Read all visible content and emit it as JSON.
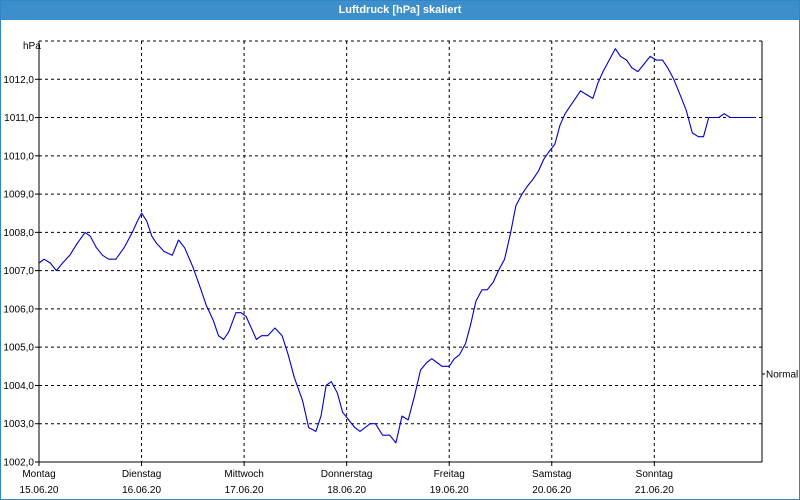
{
  "window": {
    "title": "Luftdruck [hPa] skaliert"
  },
  "chart_data": {
    "type": "line",
    "title": "Luftdruck [hPa] skaliert",
    "ylabel": "hPa",
    "ylim": [
      1002.0,
      1013.0
    ],
    "yticks": [
      "1002,0",
      "1003,0",
      "1004,0",
      "1005,0",
      "1006,0",
      "1007,0",
      "1008,0",
      "1009,0",
      "1010,0",
      "1011,0",
      "1012,0"
    ],
    "ytick_values": [
      1002,
      1003,
      1004,
      1005,
      1006,
      1007,
      1008,
      1009,
      1010,
      1011,
      1012
    ],
    "xlim": [
      0,
      7.05
    ],
    "days": [
      {
        "day": "Montag",
        "date": "15.06.20"
      },
      {
        "day": "Dienstag",
        "date": "16.06.20"
      },
      {
        "day": "Mittwoch",
        "date": "17.06.20"
      },
      {
        "day": "Donnerstag",
        "date": "18.06.20"
      },
      {
        "day": "Freitag",
        "date": "19.06.20"
      },
      {
        "day": "Samstag",
        "date": "20.06.20"
      },
      {
        "day": "Sonntag",
        "date": "21.06.20"
      }
    ],
    "right_label": "Normal",
    "right_label_value": 1004.3,
    "grid": true,
    "series": [
      {
        "color": "#0000cc",
        "x": [
          0.0,
          0.05,
          0.11,
          0.17,
          0.23,
          0.3,
          0.37,
          0.45,
          0.5,
          0.56,
          0.62,
          0.68,
          0.75,
          0.83,
          0.91,
          0.96,
          1.0,
          1.05,
          1.1,
          1.15,
          1.22,
          1.3,
          1.36,
          1.42,
          1.5,
          1.58,
          1.63,
          1.7,
          1.75,
          1.8,
          1.85,
          1.92,
          1.97,
          2.02,
          2.07,
          2.12,
          2.17,
          2.23,
          2.3,
          2.37,
          2.43,
          2.49,
          2.57,
          2.63,
          2.7,
          2.75,
          2.8,
          2.85,
          2.91,
          2.96,
          3.02,
          3.08,
          3.13,
          3.18,
          3.23,
          3.28,
          3.35,
          3.42,
          3.48,
          3.54,
          3.6,
          3.66,
          3.72,
          3.78,
          3.83,
          3.88,
          3.93,
          4.0,
          4.05,
          4.1,
          4.16,
          4.21,
          4.26,
          4.32,
          4.37,
          4.43,
          4.48,
          4.54,
          4.6,
          4.65,
          4.71,
          4.76,
          4.82,
          4.87,
          4.92,
          4.97,
          5.03,
          5.08,
          5.13,
          5.18,
          5.23,
          5.28,
          5.34,
          5.4,
          5.45,
          5.5,
          5.56,
          5.62,
          5.67,
          5.73,
          5.78,
          5.84,
          5.9,
          5.96,
          6.02,
          6.08,
          6.13,
          6.19,
          6.25,
          6.31,
          6.37,
          6.43,
          6.48,
          6.53,
          6.58,
          6.63,
          6.68,
          6.74,
          6.8,
          6.86,
          6.93,
          6.98
        ],
        "y": [
          1007.2,
          1007.3,
          1007.2,
          1007.0,
          1007.2,
          1007.4,
          1007.7,
          1008.0,
          1007.9,
          1007.6,
          1007.4,
          1007.3,
          1007.3,
          1007.6,
          1008.0,
          1008.3,
          1008.5,
          1008.3,
          1007.9,
          1007.7,
          1007.5,
          1007.4,
          1007.8,
          1007.6,
          1007.1,
          1006.5,
          1006.1,
          1005.7,
          1005.3,
          1005.2,
          1005.4,
          1005.9,
          1005.9,
          1005.8,
          1005.5,
          1005.2,
          1005.3,
          1005.3,
          1005.5,
          1005.3,
          1004.8,
          1004.2,
          1003.6,
          1002.9,
          1002.8,
          1003.2,
          1004.0,
          1004.1,
          1003.8,
          1003.3,
          1003.1,
          1002.9,
          1002.8,
          1002.9,
          1003.0,
          1003.0,
          1002.7,
          1002.7,
          1002.5,
          1003.2,
          1003.1,
          1003.7,
          1004.4,
          1004.6,
          1004.7,
          1004.6,
          1004.5,
          1004.5,
          1004.7,
          1004.8,
          1005.1,
          1005.6,
          1006.2,
          1006.5,
          1006.5,
          1006.7,
          1007.0,
          1007.3,
          1008.0,
          1008.7,
          1009.0,
          1009.2,
          1009.4,
          1009.6,
          1009.9,
          1010.1,
          1010.3,
          1010.8,
          1011.1,
          1011.3,
          1011.5,
          1011.7,
          1011.6,
          1011.5,
          1011.9,
          1012.2,
          1012.5,
          1012.8,
          1012.6,
          1012.5,
          1012.3,
          1012.2,
          1012.4,
          1012.6,
          1012.5,
          1012.5,
          1012.3,
          1012.0,
          1011.6,
          1011.2,
          1010.6,
          1010.5,
          1010.5,
          1011.0,
          1011.0,
          1011.0,
          1011.1,
          1011.0,
          1011.0,
          1011.0,
          1011.0,
          1011.0
        ]
      }
    ]
  }
}
